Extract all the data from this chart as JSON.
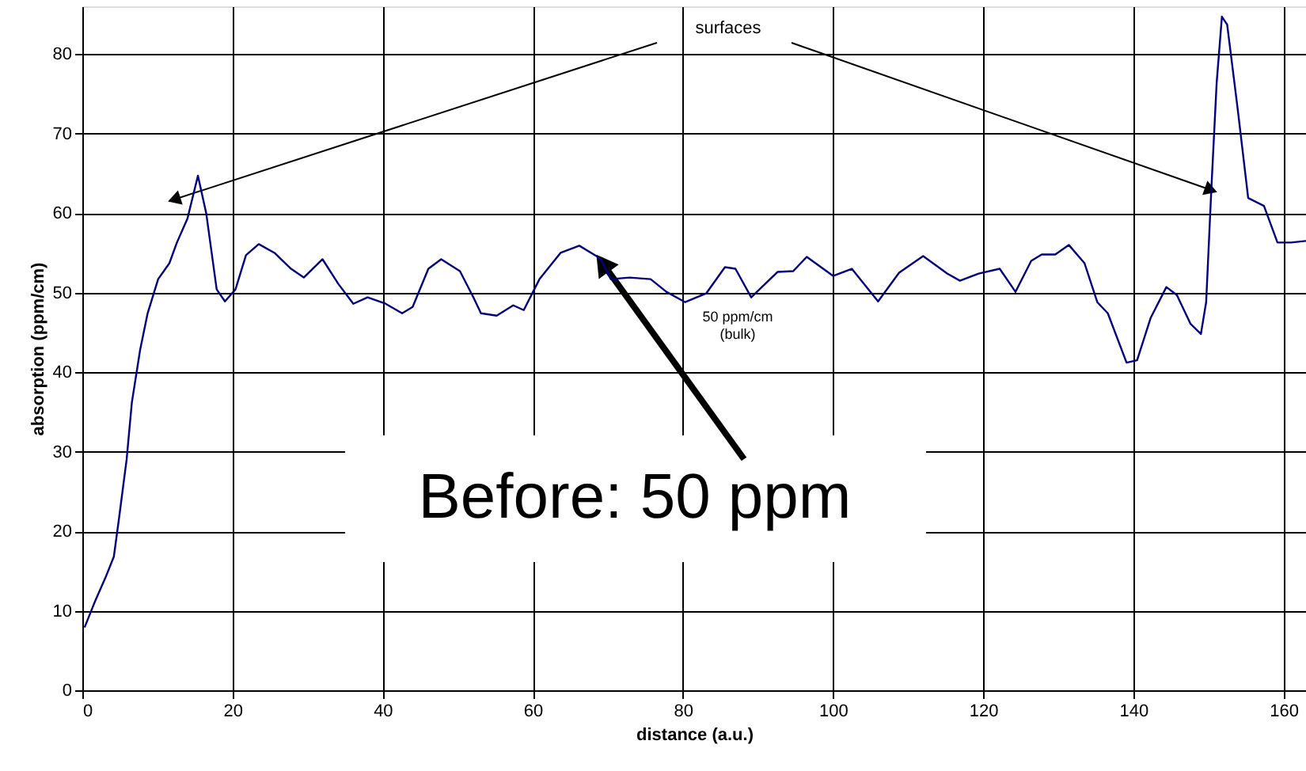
{
  "chart_data": {
    "type": "line",
    "xlabel": "distance (a.u.)",
    "ylabel": "absorption (ppm/cm)",
    "x": [
      0.3,
      1.7,
      3.1,
      4.2,
      4.9,
      5.9,
      6.6,
      7.7,
      8.7,
      10.1,
      11.6,
      12.6,
      14,
      15.4,
      16.5,
      17.9,
      19,
      20.4,
      21.8,
      23.5,
      25.6,
      27.8,
      29.5,
      32,
      34.1,
      36.1,
      38,
      40.4,
      42.6,
      44,
      46.1,
      47.8,
      50.3,
      52.1,
      53.1,
      55.2,
      57.4,
      58.8,
      60.9,
      63.7,
      66.2,
      69,
      70.4,
      72.9,
      75.7,
      77.8,
      80.3,
      83.1,
      85.6,
      87,
      89.1,
      92.6,
      94.7,
      96.5,
      100,
      102.5,
      106,
      108.8,
      112,
      115.2,
      116.9,
      119.4,
      122.2,
      124.3,
      126.4,
      127.8,
      129.6,
      131.4,
      133.5,
      135.2,
      136.6,
      139.1,
      140.5,
      142.3,
      144.4,
      145.8,
      147.6,
      149,
      149.7,
      150.4,
      151.1,
      151.8,
      152.5,
      153.9,
      155.3,
      157.4,
      159.2,
      161,
      163
    ],
    "series": [
      {
        "color": "#000080",
        "values": [
          7.9,
          11.2,
          14.2,
          16.8,
          21.7,
          29,
          36.2,
          42.8,
          47.4,
          51.7,
          53.7,
          56.3,
          59.3,
          64.7,
          60,
          50.4,
          48.9,
          50.4,
          54.7,
          56.1,
          55,
          53,
          51.9,
          54.2,
          51.1,
          48.6,
          49.4,
          48.6,
          47.4,
          48.2,
          53,
          54.2,
          52.7,
          49.4,
          47.4,
          47.1,
          48.4,
          47.8,
          51.7,
          55,
          55.9,
          54.3,
          51.7,
          51.9,
          51.7,
          50.1,
          48.8,
          49.9,
          53.2,
          53,
          49.4,
          52.6,
          52.7,
          54.5,
          52.1,
          53,
          48.9,
          52.5,
          54.6,
          52.4,
          51.5,
          52.4,
          53,
          50.1,
          54,
          54.8,
          54.8,
          56,
          53.7,
          48.8,
          47.4,
          41.2,
          41.5,
          46.8,
          50.7,
          49.7,
          46.1,
          44.8,
          48.8,
          63.2,
          76.4,
          84.7,
          83.7,
          73.1,
          61.9,
          60.9,
          56.3,
          56.3,
          56.5
        ]
      }
    ],
    "xlim": [
      0,
      163
    ],
    "ylim": [
      0,
      86
    ],
    "xticks": [
      0,
      20,
      40,
      60,
      80,
      100,
      120,
      140,
      160
    ],
    "yticks": [
      0,
      10,
      20,
      30,
      40,
      50,
      60,
      70,
      80
    ],
    "grid": true,
    "marker": "none",
    "line_style": "solid",
    "annotations": [
      "surfaces",
      "50 ppm/cm\n(bulk)",
      {
        "text": "Before: 50 ppm",
        "x": 69.3,
        "y": 53.7
      }
    ]
  }
}
